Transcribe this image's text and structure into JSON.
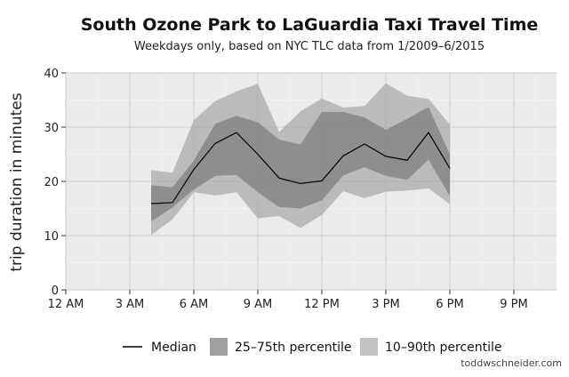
{
  "chart_data": {
    "type": "area",
    "title": "South Ozone Park to LaGuardia Taxi Travel Time",
    "subtitle": "Weekdays only, based on NYC TLC data from 1/2009–6/2015",
    "xlabel": "",
    "ylabel": "trip duration in minutes",
    "xlim": [
      0,
      23
    ],
    "ylim": [
      0,
      40
    ],
    "x_ticks": [
      0,
      3,
      6,
      9,
      12,
      15,
      18,
      21
    ],
    "x_tick_labels": [
      "12 AM",
      "3 AM",
      "6 AM",
      "9 AM",
      "12 PM",
      "3 PM",
      "6 PM",
      "9 PM"
    ],
    "y_ticks": [
      0,
      10,
      20,
      30,
      40
    ],
    "y_tick_labels": [
      "0",
      "10",
      "20",
      "30",
      "40"
    ],
    "grid": true,
    "legend_position": "bottom",
    "x": [
      4,
      5,
      6,
      7,
      8,
      9,
      10,
      11,
      12,
      13,
      14,
      15,
      16,
      17,
      18
    ],
    "series": [
      {
        "name": "Median",
        "kind": "line",
        "color": "#000000",
        "values": [
          15.9,
          16.1,
          22.2,
          27.0,
          29.0,
          25.0,
          20.6,
          19.6,
          20.1,
          24.7,
          26.9,
          24.6,
          23.9,
          29.0,
          22.4
        ]
      },
      {
        "name": "25–75th percentile",
        "kind": "band",
        "color": "#7f7f7f",
        "opacity": 0.75,
        "lower": [
          12.6,
          15.2,
          18.5,
          21.0,
          21.2,
          18.0,
          15.3,
          15.0,
          16.5,
          21.1,
          22.6,
          21.0,
          20.3,
          24.0,
          17.3
        ],
        "upper": [
          19.3,
          18.9,
          23.8,
          30.6,
          32.1,
          30.9,
          27.7,
          26.8,
          32.8,
          32.8,
          31.8,
          29.5,
          31.5,
          33.7,
          25.0
        ]
      },
      {
        "name": "10–90th percentile",
        "kind": "band",
        "color": "#a6a6a6",
        "opacity": 0.7,
        "lower": [
          10.1,
          13.0,
          18.0,
          17.4,
          18.0,
          13.2,
          13.6,
          11.4,
          13.8,
          18.2,
          16.9,
          18.1,
          18.3,
          18.7,
          15.8
        ],
        "upper": [
          22.1,
          21.6,
          31.3,
          34.8,
          36.6,
          38.0,
          29.1,
          32.9,
          35.3,
          33.6,
          33.9,
          38.1,
          35.8,
          35.2,
          30.5
        ]
      }
    ],
    "annotations": [
      "toddwschneider.com"
    ]
  },
  "colors": {
    "panel_background": "#ebebeb",
    "grid_major": "#d2d2d2",
    "grid_minor": "#f2f2f2",
    "outer_band": "#a6a6a6",
    "inner_band": "#7f7f7f",
    "median_line": "#000000"
  }
}
